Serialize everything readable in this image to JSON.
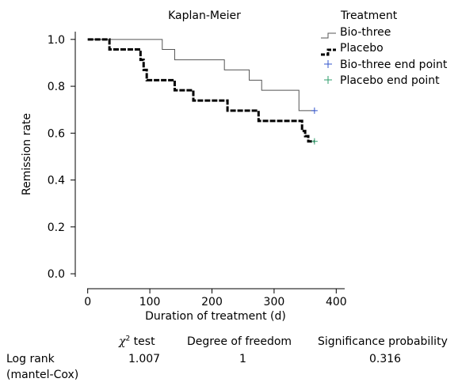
{
  "chart_data": {
    "type": "line",
    "title": "Kaplan-Meier",
    "xlabel": "Duration of treatment (d)",
    "ylabel": "Remission rate",
    "xlim": [
      -20,
      420
    ],
    "ylim": [
      -0.03,
      1.05
    ],
    "xticks": [
      0,
      100,
      200,
      300,
      400
    ],
    "yticks": [
      0.0,
      0.2,
      0.4,
      0.6,
      0.8,
      1.0
    ],
    "yticklabels": [
      "0.0",
      "0.2",
      "0.4",
      "0.6",
      "0.8",
      "1.0"
    ],
    "step": true,
    "legend": {
      "title": "Treatment",
      "position": "top-right",
      "entries": [
        "Bio-three",
        "Placebo",
        "Bio-three end point",
        "Placebo end point"
      ]
    },
    "series": [
      {
        "name": "Bio-three",
        "color": "#555555",
        "style": "thin",
        "x": [
          0,
          120,
          140,
          220,
          260,
          280,
          340,
          365
        ],
        "y": [
          1.0,
          0.957,
          0.913,
          0.87,
          0.826,
          0.783,
          0.696,
          0.696
        ]
      },
      {
        "name": "Placebo",
        "color": "#000000",
        "style": "thick-dashed",
        "x": [
          0,
          35,
          85,
          90,
          95,
          140,
          170,
          225,
          275,
          345,
          350,
          355,
          365
        ],
        "y": [
          1.0,
          0.957,
          0.913,
          0.87,
          0.826,
          0.783,
          0.739,
          0.696,
          0.652,
          0.609,
          0.587,
          0.565,
          0.565
        ]
      }
    ],
    "end_points": [
      {
        "name": "Bio-three end point",
        "color": "#3355cc",
        "x": 365,
        "y": 0.696
      },
      {
        "name": "Placebo end point",
        "color": "#2e9e6b",
        "x": 365,
        "y": 0.565
      }
    ]
  },
  "stats": {
    "col_chi_symbol": "χ",
    "col_chi_sup": "2",
    "col_chi_rest": " test",
    "col_df": "Degree of freedom",
    "col_p": "Significance probability",
    "row_label_1": "Log rank",
    "row_label_2": "(mantel-Cox)",
    "chi_value": "1.007",
    "df_value": "1",
    "p_value": "0.316"
  }
}
